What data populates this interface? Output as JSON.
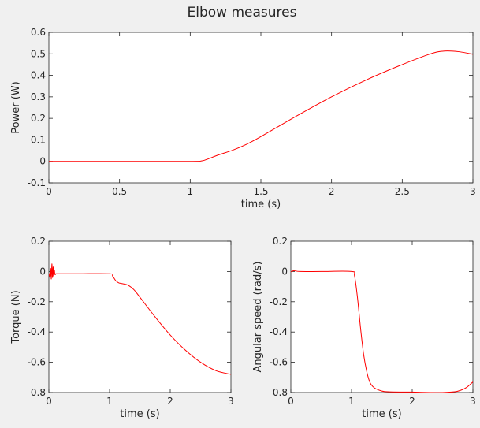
{
  "figure": {
    "title": "Elbow measures",
    "background": "#f0f0f0",
    "line_color": "#ff0000"
  },
  "chart_data": [
    {
      "id": "power",
      "type": "line",
      "xlabel": "time (s)",
      "ylabel": "Power (W)",
      "xlim": [
        0,
        3
      ],
      "ylim": [
        -0.1,
        0.6
      ],
      "xticks": [
        0,
        0.5,
        1,
        1.5,
        2,
        2.5,
        3
      ],
      "xtick_labels": [
        "0",
        "0.5",
        "1",
        "1.5",
        "2",
        "2.5",
        "3"
      ],
      "yticks": [
        -0.1,
        0,
        0.1,
        0.2,
        0.3,
        0.4,
        0.5,
        0.6
      ],
      "ytick_labels": [
        "-0.1",
        "0",
        "0.1",
        "0.2",
        "0.3",
        "0.4",
        "0.5",
        "0.6"
      ],
      "grid": false,
      "series": [
        {
          "name": "power",
          "x": [
            0,
            0.5,
            1.0,
            1.08,
            1.12,
            1.2,
            1.3,
            1.4,
            1.5,
            1.75,
            2.0,
            2.25,
            2.5,
            2.7,
            2.8,
            2.9,
            3.0
          ],
          "y": [
            0,
            0,
            0,
            0.002,
            0.01,
            0.03,
            0.052,
            0.08,
            0.115,
            0.21,
            0.3,
            0.38,
            0.45,
            0.5,
            0.513,
            0.51,
            0.498
          ]
        }
      ]
    },
    {
      "id": "torque",
      "type": "line",
      "xlabel": "time (s)",
      "ylabel": "Torque (N)",
      "xlim": [
        0,
        3
      ],
      "ylim": [
        -0.8,
        0.2
      ],
      "xticks": [
        0,
        1,
        2,
        3
      ],
      "xtick_labels": [
        "0",
        "1",
        "2",
        "3"
      ],
      "yticks": [
        -0.8,
        -0.6,
        -0.4,
        -0.2,
        0,
        0.2
      ],
      "ytick_labels": [
        "-0.8",
        "-0.6",
        "-0.4",
        "-0.2",
        "0",
        "0.2"
      ],
      "grid": false,
      "series": [
        {
          "name": "torque",
          "x": [
            0,
            0.02,
            0.03,
            0.04,
            0.05,
            0.06,
            0.07,
            0.08,
            0.09,
            0.1,
            0.12,
            0.15,
            0.5,
            1.0,
            1.05,
            1.1,
            1.15,
            1.2,
            1.3,
            1.4,
            1.5,
            1.75,
            2.0,
            2.25,
            2.5,
            2.75,
            3.0
          ],
          "y": [
            -0.01,
            -0.04,
            0.02,
            -0.05,
            0.05,
            -0.04,
            0.03,
            -0.03,
            0.01,
            -0.02,
            -0.015,
            -0.015,
            -0.015,
            -0.015,
            -0.03,
            -0.06,
            -0.075,
            -0.08,
            -0.09,
            -0.12,
            -0.17,
            -0.3,
            -0.42,
            -0.52,
            -0.6,
            -0.655,
            -0.68
          ]
        }
      ]
    },
    {
      "id": "angular-speed",
      "type": "line",
      "xlabel": "time (s)",
      "ylabel": "Angular speed (rad/s)",
      "xlim": [
        0,
        3
      ],
      "ylim": [
        -0.8,
        0.2
      ],
      "xticks": [
        0,
        1,
        2,
        3
      ],
      "xtick_labels": [
        "0",
        "1",
        "2",
        "3"
      ],
      "yticks": [
        -0.8,
        -0.6,
        -0.4,
        -0.2,
        0,
        0.2
      ],
      "ytick_labels": [
        "-0.8",
        "-0.6",
        "-0.4",
        "-0.2",
        "0",
        "0.2"
      ],
      "grid": false,
      "series": [
        {
          "name": "angular speed",
          "x": [
            0,
            0.05,
            0.15,
            0.5,
            1.0,
            1.05,
            1.1,
            1.15,
            1.2,
            1.25,
            1.3,
            1.35,
            1.4,
            1.5,
            1.6,
            1.8,
            2.0,
            2.3,
            2.5,
            2.7,
            2.8,
            2.9,
            3.0
          ],
          "y": [
            -0.002,
            0.005,
            0.0,
            0.0,
            0.0,
            -0.03,
            -0.18,
            -0.38,
            -0.55,
            -0.66,
            -0.73,
            -0.76,
            -0.775,
            -0.79,
            -0.795,
            -0.797,
            -0.797,
            -0.8,
            -0.8,
            -0.795,
            -0.785,
            -0.765,
            -0.73
          ]
        }
      ]
    }
  ]
}
